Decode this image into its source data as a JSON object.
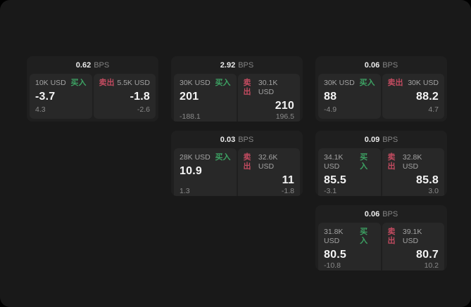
{
  "labels": {
    "bps": "BPS",
    "buy": "买入",
    "sell": "卖出"
  },
  "colors": {
    "buy": "#3da263",
    "sell": "#c24b60",
    "page_background": "#191919",
    "card_background": "#1f1f1f",
    "panel_background": "#282828"
  },
  "cards": [
    {
      "bps": "0.62",
      "grid": {
        "row": 1,
        "col": 1
      },
      "buy": {
        "amount": "10K USD",
        "value": "-3.7",
        "sub": "4.3"
      },
      "sell": {
        "amount": "5.5K USD",
        "value": "-1.8",
        "sub": "-2.6"
      }
    },
    {
      "bps": "2.92",
      "grid": {
        "row": 1,
        "col": 2
      },
      "buy": {
        "amount": "30K USD",
        "value": "201",
        "sub": "-188.1"
      },
      "sell": {
        "amount": "30.1K USD",
        "value": "210",
        "sub": "196.5"
      }
    },
    {
      "bps": "0.06",
      "grid": {
        "row": 1,
        "col": 3
      },
      "buy": {
        "amount": "30K USD",
        "value": "88",
        "sub": "-4.9"
      },
      "sell": {
        "amount": "30K USD",
        "value": "88.2",
        "sub": "4.7"
      }
    },
    {
      "bps": "0.03",
      "grid": {
        "row": 2,
        "col": 2
      },
      "buy": {
        "amount": "28K USD",
        "value": "10.9",
        "sub": "1.3"
      },
      "sell": {
        "amount": "32.6K USD",
        "value": "11",
        "sub": "-1.8"
      }
    },
    {
      "bps": "0.09",
      "grid": {
        "row": 2,
        "col": 3
      },
      "buy": {
        "amount": "34.1K USD",
        "value": "85.5",
        "sub": "-3.1"
      },
      "sell": {
        "amount": "32.8K USD",
        "value": "85.8",
        "sub": "3.0"
      }
    },
    {
      "bps": "0.06",
      "grid": {
        "row": 3,
        "col": 3
      },
      "buy": {
        "amount": "31.8K USD",
        "value": "80.5",
        "sub": "-10.8"
      },
      "sell": {
        "amount": "39.1K USD",
        "value": "80.7",
        "sub": "10.2"
      }
    }
  ]
}
